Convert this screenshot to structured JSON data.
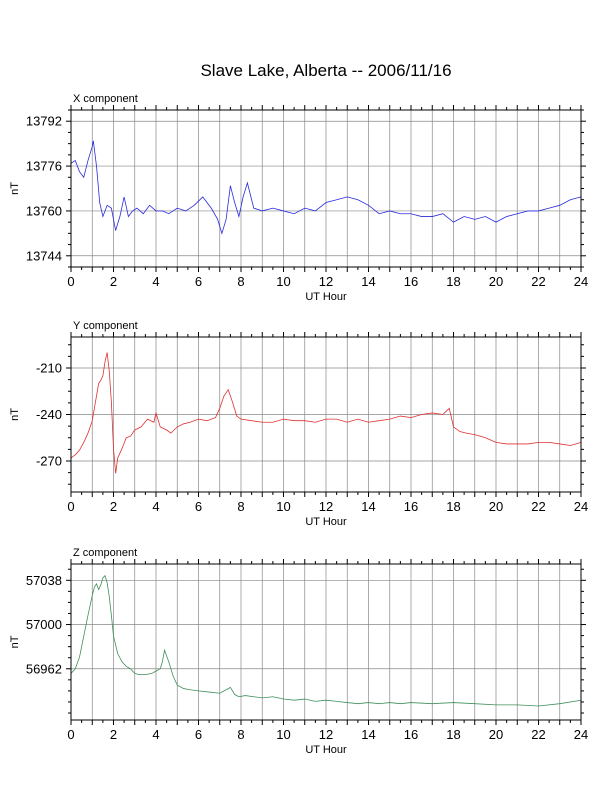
{
  "title": "Slave Lake, Alberta -- 2006/11/16",
  "chart_data": [
    {
      "type": "line",
      "label": "X component",
      "xlabel": "UT Hour",
      "ylabel": "nT",
      "xlim": [
        0,
        24
      ],
      "ylim": [
        13740,
        13796
      ],
      "xticks": [
        0,
        2,
        4,
        6,
        8,
        10,
        12,
        14,
        16,
        18,
        20,
        22,
        24
      ],
      "yticks": [
        13744,
        13760,
        13776,
        13792
      ],
      "color": "#2a2ae0",
      "series": [
        {
          "x": [
            0,
            0.2,
            0.4,
            0.6,
            0.8,
            1.0,
            1.05,
            1.2,
            1.35,
            1.5,
            1.7,
            1.9,
            2.1,
            2.3,
            2.5,
            2.7,
            2.9,
            3.1,
            3.4,
            3.7,
            4.0,
            4.3,
            4.6,
            5.0,
            5.4,
            5.8,
            6.2,
            6.6,
            6.9,
            7.1,
            7.3,
            7.5,
            7.7,
            7.9,
            8.1,
            8.3,
            8.6,
            9.0,
            9.5,
            10.0,
            10.5,
            11.0,
            11.5,
            12.0,
            12.5,
            13.0,
            13.5,
            14.0,
            14.5,
            15.0,
            15.5,
            16.0,
            16.5,
            17.0,
            17.5,
            18.0,
            18.5,
            19.0,
            19.5,
            20.0,
            20.5,
            21.0,
            21.5,
            22.0,
            22.5,
            23.0,
            23.5,
            24.0
          ],
          "y": [
            13777,
            13778,
            13774,
            13772,
            13778,
            13783,
            13785,
            13776,
            13763,
            13758,
            13762,
            13761,
            13753,
            13758,
            13765,
            13758,
            13760,
            13761,
            13759,
            13762,
            13760,
            13760,
            13759,
            13761,
            13760,
            13762,
            13765,
            13761,
            13757,
            13752,
            13757,
            13769,
            13763,
            13758,
            13765,
            13770,
            13761,
            13760,
            13761,
            13760,
            13759,
            13761,
            13760,
            13763,
            13764,
            13765,
            13764,
            13762,
            13759,
            13760,
            13759,
            13759,
            13758,
            13758,
            13759,
            13756,
            13758,
            13757,
            13758,
            13756,
            13758,
            13759,
            13760,
            13760,
            13761,
            13762,
            13764,
            13765
          ]
        }
      ]
    },
    {
      "type": "line",
      "label": "Y component",
      "xlabel": "UT Hour",
      "ylabel": "nT",
      "xlim": [
        0,
        24
      ],
      "ylim": [
        -290,
        -190
      ],
      "xticks": [
        0,
        2,
        4,
        6,
        8,
        10,
        12,
        14,
        16,
        18,
        20,
        22,
        24
      ],
      "yticks": [
        -270,
        -240,
        -210
      ],
      "color": "#e03030",
      "series": [
        {
          "x": [
            0,
            0.2,
            0.4,
            0.6,
            0.8,
            1.0,
            1.1,
            1.2,
            1.3,
            1.4,
            1.5,
            1.6,
            1.7,
            1.8,
            1.9,
            2.0,
            2.1,
            2.2,
            2.4,
            2.6,
            2.8,
            3.0,
            3.3,
            3.6,
            3.9,
            4.0,
            4.2,
            4.5,
            4.7,
            5.0,
            5.3,
            5.6,
            6.0,
            6.4,
            6.8,
            7.0,
            7.2,
            7.4,
            7.6,
            7.8,
            8.0,
            8.5,
            9.0,
            9.5,
            10.0,
            10.5,
            11.0,
            11.5,
            12.0,
            12.5,
            13.0,
            13.5,
            14.0,
            14.5,
            15.0,
            15.5,
            16.0,
            16.5,
            17.0,
            17.5,
            17.8,
            18.0,
            18.3,
            18.6,
            19.0,
            19.5,
            20.0,
            20.5,
            21.0,
            21.5,
            22.0,
            22.5,
            23.0,
            23.5,
            24.0
          ],
          "y": [
            -268,
            -266,
            -263,
            -258,
            -252,
            -244,
            -236,
            -228,
            -220,
            -218,
            -215,
            -206,
            -200,
            -212,
            -232,
            -262,
            -278,
            -268,
            -262,
            -255,
            -254,
            -250,
            -248,
            -243,
            -245,
            -239,
            -248,
            -250,
            -252,
            -248,
            -246,
            -245,
            -243,
            -244,
            -242,
            -236,
            -228,
            -224,
            -232,
            -241,
            -243,
            -244,
            -245,
            -245,
            -243,
            -244,
            -244,
            -245,
            -243,
            -243,
            -245,
            -243,
            -245,
            -244,
            -243,
            -241,
            -242,
            -240,
            -239,
            -240,
            -236,
            -248,
            -251,
            -252,
            -253,
            -255,
            -258,
            -259,
            -259,
            -259,
            -258,
            -258,
            -259,
            -260,
            -258
          ]
        }
      ]
    },
    {
      "type": "line",
      "label": "Z component",
      "xlabel": "UT Hour",
      "ylabel": "nT",
      "xlim": [
        0,
        24
      ],
      "ylim": [
        56918,
        57052
      ],
      "xticks": [
        0,
        2,
        4,
        6,
        8,
        10,
        12,
        14,
        16,
        18,
        20,
        22,
        24
      ],
      "yticks": [
        56962,
        57000,
        57038
      ],
      "color": "#3f8f5a",
      "series": [
        {
          "x": [
            0,
            0.2,
            0.4,
            0.6,
            0.8,
            1.0,
            1.1,
            1.2,
            1.3,
            1.4,
            1.5,
            1.6,
            1.7,
            1.8,
            1.9,
            2.0,
            2.2,
            2.4,
            2.6,
            2.8,
            3.0,
            3.2,
            3.5,
            3.8,
            4.0,
            4.2,
            4.3,
            4.4,
            4.6,
            4.8,
            5.0,
            5.3,
            5.6,
            6.0,
            6.5,
            7.0,
            7.3,
            7.5,
            7.7,
            7.9,
            8.2,
            8.6,
            9.0,
            9.5,
            10.0,
            10.5,
            11.0,
            11.5,
            12.0,
            12.5,
            13.0,
            13.5,
            14.0,
            14.5,
            15.0,
            15.5,
            16.0,
            17.0,
            18.0,
            19.0,
            20.0,
            21.0,
            22.0,
            23.0,
            24.0
          ],
          "y": [
            56958,
            56962,
            56972,
            56990,
            57008,
            57025,
            57032,
            57035,
            57030,
            57034,
            57040,
            57042,
            57036,
            57024,
            57008,
            56990,
            56975,
            56968,
            56964,
            56962,
            56958,
            56957,
            56957,
            56958,
            56960,
            56962,
            56968,
            56978,
            56968,
            56956,
            56948,
            56945,
            56944,
            56943,
            56942,
            56941,
            56944,
            56946,
            56940,
            56938,
            56939,
            56938,
            56937,
            56938,
            56936,
            56935,
            56936,
            56934,
            56935,
            56934,
            56933,
            56932,
            56933,
            56932,
            56933,
            56932,
            56933,
            56932,
            56933,
            56932,
            56931,
            56931,
            56930,
            56932,
            56935
          ]
        }
      ]
    }
  ]
}
